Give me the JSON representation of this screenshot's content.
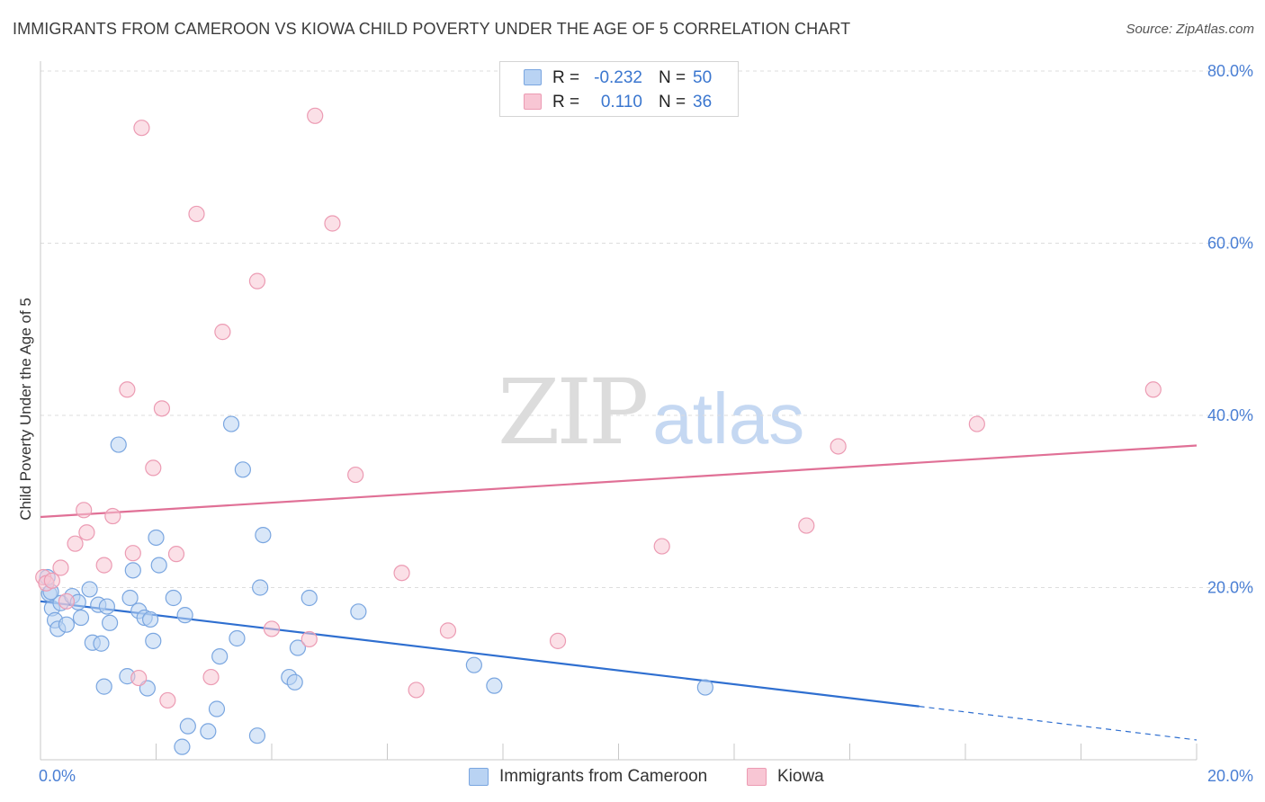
{
  "header": {
    "title": "IMMIGRANTS FROM CAMEROON VS KIOWA CHILD POVERTY UNDER THE AGE OF 5 CORRELATION CHART",
    "source": "Source: ZipAtlas.com"
  },
  "watermark": {
    "zip": "ZIP",
    "atlas": "atlas"
  },
  "legend_top": {
    "rows": [
      {
        "r_label": "R =",
        "r_value": "-0.232",
        "n_label": "N =",
        "n_value": "50"
      },
      {
        "r_label": "R =",
        "r_value": "0.110",
        "n_label": "N =",
        "n_value": "36"
      }
    ]
  },
  "legend_bottom": {
    "items": [
      {
        "label": "Immigrants from Cameroon"
      },
      {
        "label": "Kiowa"
      }
    ]
  },
  "colors": {
    "blue_fill": "#b9d3f3",
    "blue_stroke": "#7aa6e0",
    "blue_line": "#2f6fd0",
    "pink_fill": "#f8c6d4",
    "pink_stroke": "#ec9bb3",
    "pink_line": "#e07096",
    "tick": "#4a7fd4",
    "grid": "#dddddd"
  },
  "chart_data": {
    "type": "scatter",
    "title": "IMMIGRANTS FROM CAMEROON VS KIOWA CHILD POVERTY UNDER THE AGE OF 5 CORRELATION CHART",
    "xlabel": "",
    "ylabel": "Child Poverty Under the Age of 5",
    "xlim": [
      0,
      20
    ],
    "ylim": [
      0,
      80
    ],
    "x_ticks": [
      "0.0%",
      "20.0%"
    ],
    "y_ticks": [
      {
        "value": 20,
        "label": "20.0%"
      },
      {
        "value": 40,
        "label": "40.0%"
      },
      {
        "value": 60,
        "label": "60.0%"
      },
      {
        "value": 80,
        "label": "80.0%"
      }
    ],
    "grid": true,
    "legend": "bottom",
    "series": [
      {
        "name": "Immigrants from Cameroon",
        "color": "#7aa6e0",
        "trend": {
          "x0": 0.0,
          "y0": 18.4,
          "x1": 15.2,
          "y1": 6.2,
          "x_dash_end": 20.0,
          "y_dash_end": 2.3
        },
        "points": [
          [
            0.12,
            21.2
          ],
          [
            0.15,
            19.3
          ],
          [
            0.2,
            17.6
          ],
          [
            0.25,
            16.2
          ],
          [
            0.3,
            15.2
          ],
          [
            0.35,
            18.2
          ],
          [
            0.45,
            15.7
          ],
          [
            0.55,
            19.0
          ],
          [
            0.65,
            18.3
          ],
          [
            0.7,
            16.5
          ],
          [
            0.85,
            19.8
          ],
          [
            0.9,
            13.6
          ],
          [
            1.0,
            18.0
          ],
          [
            1.05,
            13.5
          ],
          [
            1.15,
            17.8
          ],
          [
            1.2,
            15.9
          ],
          [
            1.35,
            36.6
          ],
          [
            1.5,
            9.7
          ],
          [
            1.55,
            18.8
          ],
          [
            1.6,
            22.0
          ],
          [
            1.7,
            17.3
          ],
          [
            1.8,
            16.5
          ],
          [
            1.85,
            8.3
          ],
          [
            1.9,
            16.3
          ],
          [
            1.95,
            13.8
          ],
          [
            2.0,
            25.8
          ],
          [
            2.05,
            22.6
          ],
          [
            2.3,
            18.8
          ],
          [
            2.45,
            1.5
          ],
          [
            2.5,
            16.8
          ],
          [
            2.55,
            3.9
          ],
          [
            2.9,
            3.3
          ],
          [
            3.05,
            5.9
          ],
          [
            3.1,
            12.0
          ],
          [
            3.3,
            39.0
          ],
          [
            3.4,
            14.1
          ],
          [
            3.5,
            33.7
          ],
          [
            3.75,
            2.8
          ],
          [
            3.8,
            20.0
          ],
          [
            3.85,
            26.1
          ],
          [
            4.3,
            9.6
          ],
          [
            4.4,
            9.0
          ],
          [
            4.45,
            13.0
          ],
          [
            4.65,
            18.8
          ],
          [
            5.5,
            17.2
          ],
          [
            7.5,
            11.0
          ],
          [
            7.85,
            8.6
          ],
          [
            11.5,
            8.4
          ],
          [
            0.18,
            19.5
          ],
          [
            1.1,
            8.5
          ]
        ]
      },
      {
        "name": "Kiowa",
        "color": "#ec9bb3",
        "trend": {
          "x0": 0.0,
          "y0": 28.2,
          "x1": 20.0,
          "y1": 36.5
        },
        "points": [
          [
            0.05,
            21.2
          ],
          [
            0.1,
            20.5
          ],
          [
            0.2,
            20.8
          ],
          [
            0.35,
            22.3
          ],
          [
            0.45,
            18.4
          ],
          [
            0.6,
            25.1
          ],
          [
            0.75,
            29.0
          ],
          [
            0.8,
            26.4
          ],
          [
            1.1,
            22.6
          ],
          [
            1.25,
            28.3
          ],
          [
            1.5,
            43.0
          ],
          [
            1.6,
            24.0
          ],
          [
            1.7,
            9.5
          ],
          [
            1.75,
            73.4
          ],
          [
            1.95,
            33.9
          ],
          [
            2.1,
            40.8
          ],
          [
            2.2,
            6.9
          ],
          [
            2.35,
            23.9
          ],
          [
            2.7,
            63.4
          ],
          [
            2.95,
            9.6
          ],
          [
            3.15,
            49.7
          ],
          [
            3.75,
            55.6
          ],
          [
            4.0,
            15.2
          ],
          [
            4.65,
            14.0
          ],
          [
            4.75,
            74.8
          ],
          [
            5.05,
            62.3
          ],
          [
            5.45,
            33.1
          ],
          [
            6.25,
            21.7
          ],
          [
            6.5,
            8.1
          ],
          [
            7.05,
            15.0
          ],
          [
            8.95,
            13.8
          ],
          [
            10.75,
            24.8
          ],
          [
            13.25,
            27.2
          ],
          [
            13.8,
            36.4
          ],
          [
            16.2,
            39.0
          ],
          [
            19.25,
            43.0
          ]
        ]
      }
    ]
  }
}
